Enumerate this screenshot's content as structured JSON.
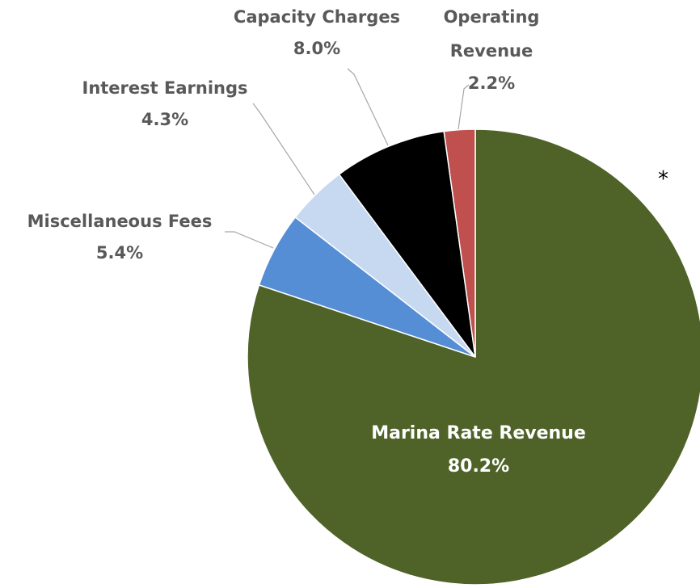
{
  "chart_data": {
    "type": "pie",
    "title": "",
    "start_angle_deg": 0,
    "direction": "clockwise",
    "slices": [
      {
        "label": "Marina Rate Revenue",
        "value": 80.2,
        "value_label": "80.2%",
        "color": "#4f6228",
        "label_inside": true
      },
      {
        "label": "Miscellaneous Fees",
        "value": 5.4,
        "value_label": "5.4%",
        "color": "#558ed5",
        "label_inside": false
      },
      {
        "label": "Interest Earnings",
        "value": 4.3,
        "value_label": "4.3%",
        "color": "#c6d9f1",
        "label_inside": false
      },
      {
        "label": "Capacity Charges",
        "value": 8.0,
        "value_label": "8.0%",
        "color": "#000000",
        "label_inside": false
      },
      {
        "label": "Operating Revenue",
        "value": 2.2,
        "value_label": "2.2%",
        "color": "#c0504d",
        "label_inside": false
      }
    ],
    "legend": "none"
  },
  "annotations": {
    "asterisk": "*"
  }
}
